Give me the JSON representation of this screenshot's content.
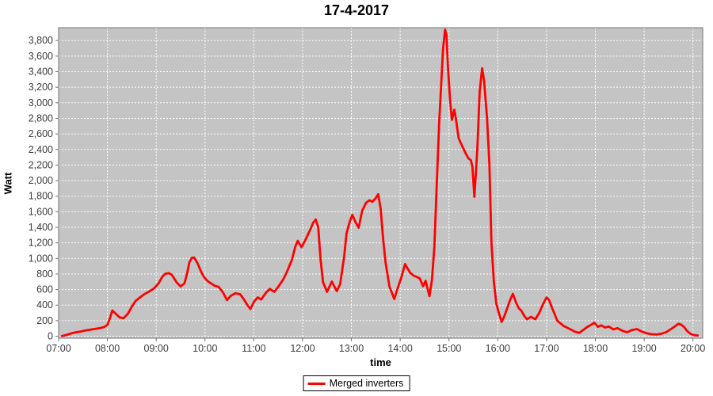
{
  "title": "17-4-2017",
  "y_axis": {
    "label": "Watt",
    "tick_labels": [
      "0",
      "200",
      "400",
      "600",
      "800",
      "1,000",
      "1,200",
      "1,400",
      "1,600",
      "1,800",
      "2,000",
      "2,200",
      "2,400",
      "2,600",
      "2,800",
      "3,000",
      "3,200",
      "3,400",
      "3,600",
      "3,800"
    ],
    "tick_values": [
      0,
      200,
      400,
      600,
      800,
      1000,
      1200,
      1400,
      1600,
      1800,
      2000,
      2200,
      2400,
      2600,
      2800,
      3000,
      3200,
      3400,
      3600,
      3800
    ]
  },
  "x_axis": {
    "label": "time",
    "tick_labels": [
      "07:00",
      "08:00",
      "09:00",
      "10:00",
      "11:00",
      "12:00",
      "13:00",
      "14:00",
      "15:00",
      "16:00",
      "17:00",
      "18:00",
      "19:00",
      "20:00"
    ],
    "tick_values": [
      7,
      8,
      9,
      10,
      11,
      12,
      13,
      14,
      15,
      16,
      17,
      18,
      19,
      20
    ]
  },
  "legend": {
    "label": "Merged inverters"
  },
  "colors": {
    "series": "#ff0000",
    "plot_bg": "#c4c4c4",
    "grid": "#ffffff",
    "frame": "#737373",
    "tick_text": "#3a3a3a"
  },
  "chart_data": {
    "type": "line",
    "title": "17-4-2017",
    "xlabel": "time",
    "ylabel": "Watt",
    "xlim": [
      7,
      20.2
    ],
    "ylim": [
      -25,
      3965
    ],
    "grid": true,
    "legend_position": "bottom",
    "x_unit": "decimal_hours",
    "series": [
      {
        "name": "Merged inverters",
        "color": "#ff0000",
        "points": [
          [
            7.07,
            3
          ],
          [
            7.13,
            12
          ],
          [
            7.2,
            25
          ],
          [
            7.28,
            40
          ],
          [
            7.37,
            52
          ],
          [
            7.45,
            60
          ],
          [
            7.55,
            75
          ],
          [
            7.65,
            85
          ],
          [
            7.75,
            95
          ],
          [
            7.85,
            105
          ],
          [
            7.93,
            118
          ],
          [
            8.0,
            145
          ],
          [
            8.05,
            230
          ],
          [
            8.1,
            330
          ],
          [
            8.17,
            290
          ],
          [
            8.25,
            242
          ],
          [
            8.33,
            232
          ],
          [
            8.42,
            290
          ],
          [
            8.5,
            380
          ],
          [
            8.58,
            455
          ],
          [
            8.67,
            500
          ],
          [
            8.75,
            538
          ],
          [
            8.85,
            572
          ],
          [
            8.95,
            612
          ],
          [
            9.05,
            680
          ],
          [
            9.12,
            760
          ],
          [
            9.18,
            800
          ],
          [
            9.25,
            812
          ],
          [
            9.32,
            790
          ],
          [
            9.42,
            690
          ],
          [
            9.5,
            640
          ],
          [
            9.58,
            680
          ],
          [
            9.63,
            800
          ],
          [
            9.68,
            950
          ],
          [
            9.73,
            1008
          ],
          [
            9.78,
            1010
          ],
          [
            9.85,
            935
          ],
          [
            9.92,
            830
          ],
          [
            9.98,
            762
          ],
          [
            10.05,
            710
          ],
          [
            10.13,
            676
          ],
          [
            10.2,
            648
          ],
          [
            10.28,
            635
          ],
          [
            10.37,
            560
          ],
          [
            10.45,
            465
          ],
          [
            10.53,
            520
          ],
          [
            10.62,
            552
          ],
          [
            10.72,
            540
          ],
          [
            10.8,
            472
          ],
          [
            10.88,
            390
          ],
          [
            10.93,
            350
          ],
          [
            11.0,
            440
          ],
          [
            11.08,
            500
          ],
          [
            11.15,
            472
          ],
          [
            11.25,
            560
          ],
          [
            11.33,
            608
          ],
          [
            11.42,
            570
          ],
          [
            11.5,
            635
          ],
          [
            11.6,
            726
          ],
          [
            11.68,
            828
          ],
          [
            11.78,
            980
          ],
          [
            11.85,
            1150
          ],
          [
            11.9,
            1226
          ],
          [
            11.98,
            1145
          ],
          [
            12.07,
            1253
          ],
          [
            12.15,
            1360
          ],
          [
            12.22,
            1462
          ],
          [
            12.27,
            1500
          ],
          [
            12.32,
            1400
          ],
          [
            12.37,
            980
          ],
          [
            12.42,
            695
          ],
          [
            12.5,
            570
          ],
          [
            12.6,
            703
          ],
          [
            12.7,
            580
          ],
          [
            12.77,
            670
          ],
          [
            12.85,
            1015
          ],
          [
            12.9,
            1320
          ],
          [
            12.97,
            1480
          ],
          [
            13.02,
            1560
          ],
          [
            13.08,
            1472
          ],
          [
            13.15,
            1395
          ],
          [
            13.22,
            1610
          ],
          [
            13.3,
            1715
          ],
          [
            13.37,
            1748
          ],
          [
            13.43,
            1728
          ],
          [
            13.5,
            1775
          ],
          [
            13.55,
            1825
          ],
          [
            13.6,
            1640
          ],
          [
            13.65,
            1250
          ],
          [
            13.7,
            947
          ],
          [
            13.78,
            640
          ],
          [
            13.88,
            479
          ],
          [
            13.95,
            620
          ],
          [
            14.02,
            750
          ],
          [
            14.1,
            928
          ],
          [
            14.2,
            818
          ],
          [
            14.28,
            778
          ],
          [
            14.4,
            744
          ],
          [
            14.47,
            642
          ],
          [
            14.52,
            712
          ],
          [
            14.6,
            515
          ],
          [
            14.65,
            720
          ],
          [
            14.7,
            1150
          ],
          [
            14.75,
            1950
          ],
          [
            14.8,
            2750
          ],
          [
            14.85,
            3350
          ],
          [
            14.88,
            3700
          ],
          [
            14.92,
            3940
          ],
          [
            14.95,
            3870
          ],
          [
            14.98,
            3450
          ],
          [
            15.02,
            3050
          ],
          [
            15.06,
            2780
          ],
          [
            15.11,
            2912
          ],
          [
            15.14,
            2800
          ],
          [
            15.2,
            2542
          ],
          [
            15.28,
            2432
          ],
          [
            15.35,
            2340
          ],
          [
            15.4,
            2285
          ],
          [
            15.45,
            2262
          ],
          [
            15.48,
            2180
          ],
          [
            15.52,
            1793
          ],
          [
            15.58,
            2400
          ],
          [
            15.63,
            3150
          ],
          [
            15.68,
            3445
          ],
          [
            15.72,
            3280
          ],
          [
            15.78,
            2800
          ],
          [
            15.83,
            2200
          ],
          [
            15.87,
            1210
          ],
          [
            15.92,
            700
          ],
          [
            15.97,
            420
          ],
          [
            16.02,
            300
          ],
          [
            16.08,
            185
          ],
          [
            16.13,
            250
          ],
          [
            16.18,
            336
          ],
          [
            16.25,
            460
          ],
          [
            16.31,
            545
          ],
          [
            16.37,
            440
          ],
          [
            16.43,
            362
          ],
          [
            16.48,
            330
          ],
          [
            16.55,
            255
          ],
          [
            16.6,
            218
          ],
          [
            16.68,
            250
          ],
          [
            16.77,
            218
          ],
          [
            16.85,
            300
          ],
          [
            16.92,
            404
          ],
          [
            17.0,
            498
          ],
          [
            17.05,
            468
          ],
          [
            17.12,
            353
          ],
          [
            17.22,
            200
          ],
          [
            17.35,
            132
          ],
          [
            17.47,
            95
          ],
          [
            17.58,
            58
          ],
          [
            17.67,
            42
          ],
          [
            17.75,
            80
          ],
          [
            17.83,
            118
          ],
          [
            17.92,
            150
          ],
          [
            17.98,
            173
          ],
          [
            18.05,
            122
          ],
          [
            18.12,
            140
          ],
          [
            18.2,
            112
          ],
          [
            18.28,
            124
          ],
          [
            18.37,
            88
          ],
          [
            18.45,
            104
          ],
          [
            18.55,
            72
          ],
          [
            18.65,
            50
          ],
          [
            18.75,
            80
          ],
          [
            18.85,
            92
          ],
          [
            18.95,
            60
          ],
          [
            19.05,
            38
          ],
          [
            19.15,
            26
          ],
          [
            19.25,
            22
          ],
          [
            19.35,
            32
          ],
          [
            19.45,
            52
          ],
          [
            19.55,
            92
          ],
          [
            19.63,
            126
          ],
          [
            19.7,
            160
          ],
          [
            19.75,
            152
          ],
          [
            19.82,
            118
          ],
          [
            19.88,
            68
          ],
          [
            19.95,
            32
          ],
          [
            20.02,
            15
          ],
          [
            20.1,
            10
          ]
        ]
      }
    ]
  }
}
